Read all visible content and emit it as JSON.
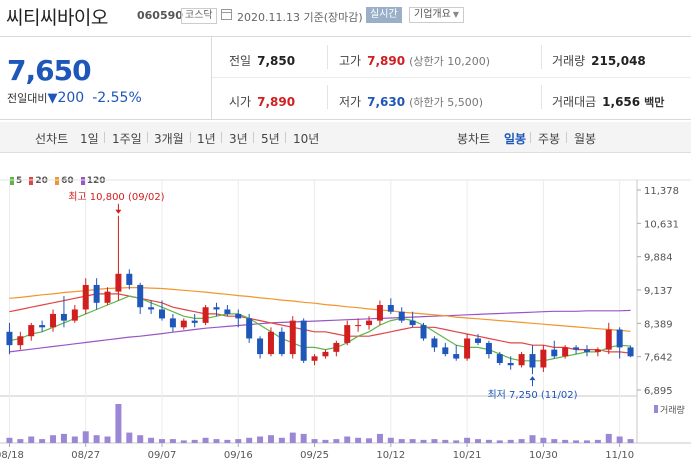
{
  "header": {
    "name": "씨티씨바이오",
    "code": "060590",
    "market": "코스닥",
    "date_text": "2020.11.13 기준(장마감)",
    "realtime": "실시간",
    "company_info": "기업개요"
  },
  "quote": {
    "price": "7,650",
    "change_label": "전일대비",
    "change_arrow": "▼",
    "change_amount": "200",
    "change_pct": "-2.55%",
    "prev_close_label": "전일",
    "prev_close": "7,850",
    "high_label": "고가",
    "high": "7,890",
    "upper_limit": "(상한가 10,200)",
    "volume_label": "거래량",
    "volume": "215,048",
    "open_label": "시가",
    "open": "7,890",
    "low_label": "저가",
    "low": "7,630",
    "lower_limit": "(하한가 5,500)",
    "amount_label": "거래대금",
    "amount": "1,656",
    "amount_unit": "백만"
  },
  "periods": {
    "line_chart_label": "선차트",
    "line_periods": [
      "1일",
      "1주일",
      "3개월",
      "1년",
      "3년",
      "5년",
      "10년"
    ],
    "candle_label": "봉차트",
    "candle_periods": [
      "일봉",
      "주봉",
      "월봉"
    ],
    "active_candle": "일봉"
  },
  "colors": {
    "up": "#d11e1e",
    "down": "#1e56b9",
    "ma5": "#5fb548",
    "ma20": "#e04545",
    "ma60": "#f0962c",
    "ma120": "#9a56c4",
    "volume": "#9c86d6"
  },
  "chart_data": {
    "type": "candlestick",
    "legend": [
      {
        "name": "5",
        "color": "#5fb548"
      },
      {
        "name": "20",
        "color": "#e04545"
      },
      {
        "name": "60",
        "color": "#f0962c"
      },
      {
        "name": "120",
        "color": "#9a56c4"
      }
    ],
    "y_ticks": [
      11378,
      10631,
      9884,
      9137,
      8389,
      7642,
      6895
    ],
    "y_tick_labels": [
      "11,378",
      "10,631",
      "9,884",
      "9,137",
      "8,389",
      "7,642",
      "6,895"
    ],
    "ylim": [
      6895,
      11378
    ],
    "x_tick_labels": [
      "08/18",
      "08/27",
      "09/07",
      "09/16",
      "09/25",
      "10/12",
      "10/21",
      "10/30",
      "11/10"
    ],
    "x_tick_index": [
      0,
      7,
      14,
      21,
      28,
      35,
      42,
      49,
      56
    ],
    "volume_label": "거래량",
    "annotations": {
      "high_text": "최고 10,800 (09/02)",
      "high_value": 10800,
      "high_index": 10,
      "low_text": "최저 7,250 (11/02)",
      "low_value": 7250,
      "low_index": 48
    },
    "candles": [
      [
        8200,
        8400,
        7700,
        7900
      ],
      [
        7900,
        8200,
        7800,
        8100
      ],
      [
        8100,
        8400,
        8000,
        8350
      ],
      [
        8350,
        8450,
        8200,
        8300
      ],
      [
        8300,
        8700,
        8200,
        8600
      ],
      [
        8600,
        9000,
        8300,
        8450
      ],
      [
        8450,
        8800,
        8400,
        8700
      ],
      [
        8700,
        9400,
        8600,
        9250
      ],
      [
        9250,
        9400,
        8700,
        8850
      ],
      [
        8850,
        9200,
        8800,
        9100
      ],
      [
        9100,
        10800,
        8900,
        9500
      ],
      [
        9500,
        9600,
        9150,
        9250
      ],
      [
        9250,
        9300,
        8600,
        8750
      ],
      [
        8750,
        8900,
        8600,
        8700
      ],
      [
        8700,
        8900,
        8450,
        8500
      ],
      [
        8500,
        8600,
        8200,
        8300
      ],
      [
        8300,
        8500,
        8250,
        8450
      ],
      [
        8450,
        8600,
        8300,
        8400
      ],
      [
        8400,
        8800,
        8350,
        8750
      ],
      [
        8750,
        8850,
        8550,
        8700
      ],
      [
        8700,
        8800,
        8550,
        8600
      ],
      [
        8600,
        8700,
        8300,
        8500
      ],
      [
        8500,
        8600,
        7950,
        8050
      ],
      [
        8050,
        8100,
        7600,
        7700
      ],
      [
        7700,
        8300,
        7650,
        8200
      ],
      [
        8200,
        8300,
        7650,
        7700
      ],
      [
        7700,
        8550,
        7600,
        8450
      ],
      [
        8450,
        8500,
        7500,
        7550
      ],
      [
        7550,
        7700,
        7450,
        7650
      ],
      [
        7650,
        7800,
        7600,
        7750
      ],
      [
        7750,
        8000,
        7650,
        7950
      ],
      [
        7950,
        8450,
        7900,
        8350
      ],
      [
        8350,
        8500,
        8200,
        8350
      ],
      [
        8350,
        8550,
        8250,
        8450
      ],
      [
        8450,
        8900,
        8350,
        8800
      ],
      [
        8800,
        8950,
        8600,
        8650
      ],
      [
        8650,
        8750,
        8400,
        8450
      ],
      [
        8450,
        8650,
        8300,
        8350
      ],
      [
        8350,
        8400,
        8000,
        8050
      ],
      [
        8050,
        8100,
        7750,
        7850
      ],
      [
        7850,
        7950,
        7650,
        7700
      ],
      [
        7700,
        7900,
        7550,
        7600
      ],
      [
        7600,
        8150,
        7550,
        8050
      ],
      [
        8050,
        8150,
        7900,
        7950
      ],
      [
        7950,
        8000,
        7600,
        7700
      ],
      [
        7700,
        7750,
        7450,
        7500
      ],
      [
        7500,
        7650,
        7350,
        7450
      ],
      [
        7450,
        7750,
        7400,
        7700
      ],
      [
        7700,
        7900,
        7250,
        7400
      ],
      [
        7400,
        7900,
        7300,
        7800
      ],
      [
        7800,
        8000,
        7600,
        7650
      ],
      [
        7650,
        7900,
        7600,
        7850
      ],
      [
        7850,
        7900,
        7700,
        7800
      ],
      [
        7800,
        7900,
        7650,
        7750
      ],
      [
        7750,
        7850,
        7650,
        7800
      ],
      [
        7800,
        8400,
        7700,
        8250
      ],
      [
        8250,
        8300,
        7600,
        7850
      ],
      [
        7850,
        7890,
        7630,
        7650
      ]
    ],
    "ma5": [
      8000,
      8050,
      8150,
      8200,
      8300,
      8400,
      8500,
      8600,
      8700,
      8800,
      8900,
      9000,
      8950,
      8850,
      8750,
      8650,
      8550,
      8500,
      8500,
      8550,
      8600,
      8600,
      8500,
      8350,
      8200,
      8050,
      7950,
      7850,
      7850,
      7800,
      7850,
      7950,
      8100,
      8200,
      8350,
      8450,
      8500,
      8450,
      8350,
      8200,
      8050,
      7900,
      7850,
      7850,
      7800,
      7700,
      7600,
      7550,
      7550,
      7550,
      7600,
      7650,
      7700,
      7750,
      7750,
      7850,
      7900,
      7880
    ],
    "ma20": [
      8650,
      8700,
      8750,
      8800,
      8850,
      8900,
      8950,
      9000,
      9050,
      9050,
      9050,
      9000,
      8950,
      8900,
      8850,
      8750,
      8700,
      8650,
      8600,
      8600,
      8550,
      8550,
      8500,
      8450,
      8400,
      8350,
      8300,
      8250,
      8200,
      8200,
      8150,
      8100,
      8100,
      8100,
      8150,
      8200,
      8250,
      8300,
      8300,
      8300,
      8250,
      8200,
      8150,
      8100,
      8050,
      8000,
      7950,
      7950,
      7900,
      7900,
      7850,
      7850,
      7800,
      7800,
      7800,
      7750,
      7750,
      7720
    ],
    "ma60": [
      8950,
      8970,
      9000,
      9030,
      9050,
      9080,
      9100,
      9120,
      9150,
      9170,
      9180,
      9190,
      9190,
      9180,
      9170,
      9150,
      9130,
      9110,
      9090,
      9060,
      9040,
      9010,
      8990,
      8960,
      8940,
      8910,
      8890,
      8860,
      8840,
      8810,
      8790,
      8760,
      8740,
      8710,
      8690,
      8670,
      8640,
      8620,
      8600,
      8580,
      8560,
      8530,
      8510,
      8490,
      8470,
      8450,
      8430,
      8410,
      8390,
      8370,
      8350,
      8330,
      8310,
      8290,
      8270,
      8250,
      8230,
      8210
    ],
    "ma120": [
      7750,
      7780,
      7810,
      7840,
      7870,
      7900,
      7930,
      7960,
      7990,
      8020,
      8050,
      8080,
      8100,
      8130,
      8160,
      8190,
      8220,
      8250,
      8280,
      8300,
      8320,
      8340,
      8360,
      8380,
      8400,
      8410,
      8420,
      8430,
      8440,
      8450,
      8460,
      8470,
      8480,
      8490,
      8500,
      8510,
      8520,
      8530,
      8540,
      8550,
      8560,
      8570,
      8580,
      8590,
      8600,
      8610,
      8620,
      8630,
      8640,
      8650,
      8660,
      8660,
      8660,
      8670,
      8670,
      8670,
      8670,
      8680
    ],
    "volume": [
      20,
      15,
      25,
      15,
      30,
      35,
      25,
      45,
      30,
      25,
      150,
      40,
      30,
      20,
      15,
      15,
      10,
      12,
      20,
      15,
      12,
      15,
      20,
      25,
      30,
      20,
      40,
      35,
      15,
      12,
      15,
      25,
      20,
      18,
      35,
      20,
      15,
      15,
      12,
      15,
      12,
      10,
      20,
      15,
      12,
      10,
      12,
      15,
      30,
      20,
      15,
      12,
      10,
      10,
      12,
      35,
      25,
      15
    ]
  }
}
